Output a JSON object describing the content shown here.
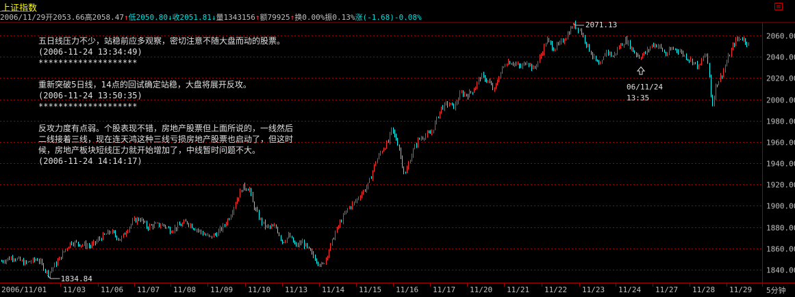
{
  "title": "上证指数",
  "info_bar": [
    {
      "text": "2006/11/29",
      "color": "#c0c0c0"
    },
    {
      "text": "开2053.66",
      "color": "#c0c0c0"
    },
    {
      "text": "高2058.47",
      "color": "#c0c0c0"
    },
    {
      "text": "↑",
      "color": "#ff4040"
    },
    {
      "text": "低2050.80",
      "color": "#00e0e0"
    },
    {
      "text": "↓",
      "color": "#00e0e0"
    },
    {
      "text": "收2051.81",
      "color": "#00e0e0"
    },
    {
      "text": "↓",
      "color": "#00e0e0"
    },
    {
      "text": "量1343156",
      "color": "#c0c0c0"
    },
    {
      "text": "↑",
      "color": "#ff4040"
    },
    {
      "text": "额79925",
      "color": "#c0c0c0"
    },
    {
      "text": "↑",
      "color": "#ff4040"
    },
    {
      "text": "换0.00%",
      "color": "#c0c0c0"
    },
    {
      "text": "振0.13%",
      "color": "#c0c0c0"
    },
    {
      "text": "涨(-1.68)-0.08%",
      "color": "#00e0e0"
    }
  ],
  "notes": [
    {
      "text": "五日线压力不少，站稳前应多观察，密切注意不随大盘而动的股票。",
      "time": "(2006-11-24 13:34:49)",
      "separator": "********************"
    },
    {
      "text": "重新突破5日线，14点的回试确定站稳，大盘将展开反攻。",
      "time": "(2006-11-24 13:50:35)",
      "separator": "********************"
    },
    {
      "text": "反攻力度有点弱。个股表现不错，房地产股票但上面所说的，一线然后二线接着三线，现在连天鸿这种三线亏损房地产股票也启动了，但这时候，房地产板块短线压力就开始增加了，中线暂时问题不大。",
      "time": "(2006-11-24 14:14:17)",
      "separator": ""
    }
  ],
  "annotations": {
    "low_label": "1834.84",
    "high_label": "2071.13",
    "marker_date": "06/11/24",
    "marker_time": "13:35"
  },
  "period_label": "5分钟",
  "colors": {
    "up": "#ff3030",
    "down": "#00ffff",
    "grid": "#a00000",
    "axis": "#a00000",
    "text": "#c0c0c0",
    "title": "#ffff00"
  },
  "chart_data": {
    "type": "candlestick",
    "interval": "5分钟",
    "yticks": [
      1840,
      1860,
      1880,
      1900,
      1920,
      1940,
      1960,
      1980,
      2000,
      2020,
      2040,
      2060
    ],
    "ylim": [
      1830,
      2075
    ],
    "grid": true,
    "days": [
      "2006/11/01",
      "11/03",
      "11/06",
      "11/07",
      "11/08",
      "11/09",
      "11/10",
      "11/13",
      "11/14",
      "11/15",
      "11/16",
      "11/17",
      "11/20",
      "11/21",
      "11/22",
      "11/23",
      "11/24",
      "11/27",
      "11/28",
      "11/29"
    ],
    "day_close_path": [
      {
        "x": 0,
        "y": 1848
      },
      {
        "x": 3.5,
        "y": 1852
      },
      {
        "x": 7,
        "y": 1846
      },
      {
        "x": 11,
        "y": 1850
      },
      {
        "x": 13,
        "y": 1841
      },
      {
        "x": 14,
        "y": 1836
      },
      {
        "x": 17,
        "y": 1848
      },
      {
        "x": 19,
        "y": 1858
      },
      {
        "x": 21,
        "y": 1866
      },
      {
        "x": 24,
        "y": 1864
      },
      {
        "x": 27,
        "y": 1862
      },
      {
        "x": 30,
        "y": 1870
      },
      {
        "x": 33,
        "y": 1876
      },
      {
        "x": 36,
        "y": 1868
      },
      {
        "x": 38,
        "y": 1878
      },
      {
        "x": 40,
        "y": 1886
      },
      {
        "x": 42,
        "y": 1888
      },
      {
        "x": 44,
        "y": 1880
      },
      {
        "x": 46,
        "y": 1882
      },
      {
        "x": 49,
        "y": 1882
      },
      {
        "x": 51,
        "y": 1877
      },
      {
        "x": 53,
        "y": 1880
      },
      {
        "x": 56,
        "y": 1885
      },
      {
        "x": 58,
        "y": 1880
      },
      {
        "x": 60,
        "y": 1876
      },
      {
        "x": 62,
        "y": 1872
      },
      {
        "x": 63,
        "y": 1870
      },
      {
        "x": 65,
        "y": 1874
      },
      {
        "x": 67,
        "y": 1880
      },
      {
        "x": 69,
        "y": 1890
      },
      {
        "x": 71,
        "y": 1905
      },
      {
        "x": 73,
        "y": 1918
      },
      {
        "x": 75,
        "y": 1916
      },
      {
        "x": 76,
        "y": 1902
      },
      {
        "x": 78,
        "y": 1888
      },
      {
        "x": 80,
        "y": 1880
      },
      {
        "x": 83,
        "y": 1880
      },
      {
        "x": 85,
        "y": 1866
      },
      {
        "x": 87,
        "y": 1872
      },
      {
        "x": 89,
        "y": 1862
      },
      {
        "x": 91,
        "y": 1866
      },
      {
        "x": 93,
        "y": 1858
      },
      {
        "x": 95,
        "y": 1850
      },
      {
        "x": 97,
        "y": 1843
      },
      {
        "x": 99,
        "y": 1858
      },
      {
        "x": 101,
        "y": 1875
      },
      {
        "x": 103,
        "y": 1888
      },
      {
        "x": 105,
        "y": 1898
      },
      {
        "x": 107,
        "y": 1904
      },
      {
        "x": 109,
        "y": 1912
      },
      {
        "x": 111,
        "y": 1920
      },
      {
        "x": 113,
        "y": 1940
      },
      {
        "x": 115,
        "y": 1952
      },
      {
        "x": 117,
        "y": 1960
      },
      {
        "x": 118,
        "y": 1972
      },
      {
        "x": 120,
        "y": 1958
      },
      {
        "x": 122,
        "y": 1928
      },
      {
        "x": 124,
        "y": 1948
      },
      {
        "x": 126,
        "y": 1962
      },
      {
        "x": 128,
        "y": 1966
      },
      {
        "x": 130,
        "y": 1968
      },
      {
        "x": 131,
        "y": 1976
      },
      {
        "x": 133,
        "y": 1992
      },
      {
        "x": 135,
        "y": 1996
      },
      {
        "x": 137,
        "y": 1993
      },
      {
        "x": 139,
        "y": 2006
      },
      {
        "x": 141,
        "y": 2004
      },
      {
        "x": 143,
        "y": 2010
      },
      {
        "x": 145,
        "y": 2022
      },
      {
        "x": 147,
        "y": 2018
      },
      {
        "x": 149,
        "y": 2008
      },
      {
        "x": 151,
        "y": 2026
      },
      {
        "x": 153,
        "y": 2036
      },
      {
        "x": 155,
        "y": 2034
      },
      {
        "x": 157,
        "y": 2030
      },
      {
        "x": 159,
        "y": 2036
      },
      {
        "x": 161,
        "y": 2028
      },
      {
        "x": 163,
        "y": 2040
      },
      {
        "x": 165,
        "y": 2056
      },
      {
        "x": 167,
        "y": 2048
      },
      {
        "x": 169,
        "y": 2052
      },
      {
        "x": 171,
        "y": 2060
      },
      {
        "x": 173,
        "y": 2070
      },
      {
        "x": 175,
        "y": 2066
      },
      {
        "x": 177,
        "y": 2052
      },
      {
        "x": 179,
        "y": 2040
      },
      {
        "x": 181,
        "y": 2030
      },
      {
        "x": 183,
        "y": 2046
      },
      {
        "x": 185,
        "y": 2040
      },
      {
        "x": 187,
        "y": 2050
      },
      {
        "x": 189,
        "y": 2056
      },
      {
        "x": 191,
        "y": 2046
      },
      {
        "x": 193,
        "y": 2040
      },
      {
        "x": 195,
        "y": 2044
      },
      {
        "x": 197,
        "y": 2052
      },
      {
        "x": 199,
        "y": 2050
      },
      {
        "x": 201,
        "y": 2042
      },
      {
        "x": 203,
        "y": 2048
      },
      {
        "x": 205,
        "y": 2046
      },
      {
        "x": 207,
        "y": 2040
      },
      {
        "x": 209,
        "y": 2036
      },
      {
        "x": 211,
        "y": 2030
      },
      {
        "x": 213,
        "y": 2044
      },
      {
        "x": 214,
        "y": 2030
      },
      {
        "x": 215,
        "y": 1992
      },
      {
        "x": 216,
        "y": 2012
      },
      {
        "x": 218,
        "y": 2024
      },
      {
        "x": 220,
        "y": 2040
      },
      {
        "x": 222,
        "y": 2055
      },
      {
        "x": 224,
        "y": 2058
      },
      {
        "x": 226,
        "y": 2052
      }
    ],
    "x_range": [
      0,
      226
    ],
    "low": {
      "value": 1834.84,
      "x": 14
    },
    "high": {
      "value": 2071.13,
      "x": 173
    }
  }
}
